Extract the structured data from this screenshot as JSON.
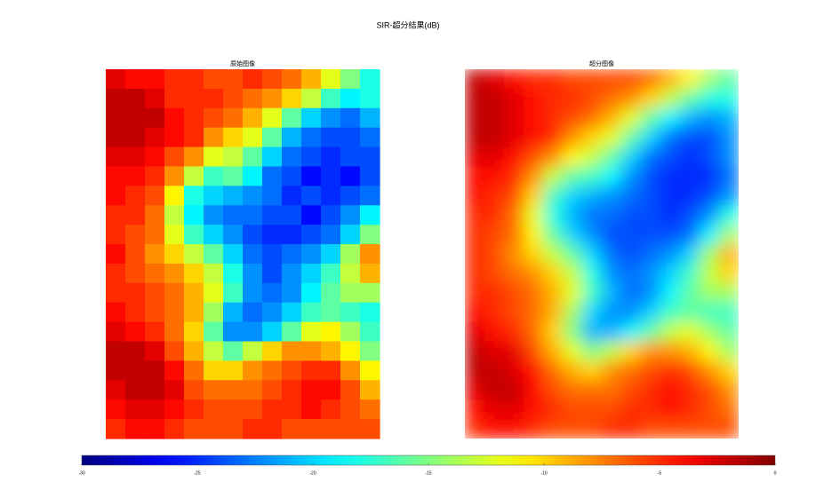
{
  "chart_data": {
    "type": "heatmap",
    "title": "SIR-超分结果(dB)",
    "colormap": "jet",
    "clim": [
      -30,
      0
    ],
    "colorbar_ticks": [
      -30,
      -25,
      -20,
      -15,
      -10,
      -5,
      0
    ],
    "panels": [
      {
        "title": "原始图像",
        "smooth": false,
        "values": [
          [
            -3,
            -4,
            -4,
            -5,
            -5,
            -6,
            -6,
            -5,
            -6,
            -7,
            -9,
            -12,
            -15,
            -18
          ],
          [
            -2,
            -2,
            -3,
            -5,
            -5,
            -5,
            -6,
            -7,
            -8,
            -10,
            -13,
            -17,
            -19,
            -18
          ],
          [
            -2,
            -2,
            -2,
            -4,
            -5,
            -6,
            -7,
            -9,
            -12,
            -16,
            -20,
            -22,
            -23,
            -21
          ],
          [
            -2,
            -2,
            -3,
            -4,
            -5,
            -8,
            -10,
            -12,
            -16,
            -21,
            -23,
            -24,
            -24,
            -23
          ],
          [
            -3,
            -3,
            -4,
            -6,
            -8,
            -12,
            -13,
            -16,
            -20,
            -23,
            -24,
            -25,
            -24,
            -24
          ],
          [
            -4,
            -4,
            -5,
            -8,
            -13,
            -17,
            -16,
            -19,
            -23,
            -24,
            -26,
            -25,
            -26,
            -24
          ],
          [
            -4,
            -5,
            -6,
            -11,
            -18,
            -20,
            -21,
            -22,
            -23,
            -25,
            -24,
            -25,
            -24,
            -23
          ],
          [
            -5,
            -5,
            -7,
            -13,
            -19,
            -22,
            -23,
            -23,
            -24,
            -24,
            -26,
            -24,
            -22,
            -19
          ],
          [
            -5,
            -6,
            -7,
            -12,
            -17,
            -20,
            -22,
            -24,
            -25,
            -25,
            -24,
            -23,
            -20,
            -15
          ],
          [
            -4,
            -6,
            -8,
            -10,
            -13,
            -16,
            -20,
            -23,
            -24,
            -23,
            -22,
            -20,
            -14,
            -8
          ],
          [
            -5,
            -6,
            -7,
            -8,
            -10,
            -13,
            -18,
            -22,
            -24,
            -22,
            -20,
            -17,
            -13,
            -9
          ],
          [
            -5,
            -5,
            -6,
            -7,
            -9,
            -12,
            -17,
            -22,
            -23,
            -22,
            -19,
            -16,
            -14,
            -14
          ],
          [
            -4,
            -5,
            -6,
            -7,
            -9,
            -14,
            -21,
            -23,
            -22,
            -20,
            -17,
            -16,
            -17,
            -18
          ],
          [
            -3,
            -4,
            -5,
            -7,
            -10,
            -16,
            -22,
            -22,
            -20,
            -16,
            -12,
            -11,
            -14,
            -17
          ],
          [
            -2,
            -2,
            -3,
            -6,
            -9,
            -13,
            -16,
            -13,
            -10,
            -8,
            -8,
            -9,
            -11,
            -15
          ],
          [
            -2,
            -2,
            -2,
            -4,
            -7,
            -10,
            -10,
            -8,
            -7,
            -6,
            -5,
            -5,
            -8,
            -11
          ],
          [
            -3,
            -2,
            -2,
            -3,
            -6,
            -7,
            -7,
            -7,
            -6,
            -5,
            -4,
            -4,
            -6,
            -9
          ],
          [
            -4,
            -3,
            -3,
            -4,
            -5,
            -6,
            -6,
            -6,
            -5,
            -5,
            -4,
            -5,
            -6,
            -7
          ],
          [
            -5,
            -4,
            -4,
            -5,
            -6,
            -6,
            -6,
            -5,
            -5,
            -6,
            -6,
            -6,
            -6,
            -6
          ]
        ]
      },
      {
        "title": "超分图像",
        "smooth": true,
        "values": [
          [
            -2,
            -3,
            -4,
            -5,
            -5,
            -6,
            -6,
            -6,
            -6,
            -7,
            -9,
            -11,
            -14,
            -16
          ],
          [
            -2,
            -2,
            -3,
            -4,
            -5,
            -5,
            -6,
            -7,
            -8,
            -10,
            -13,
            -16,
            -18,
            -18
          ],
          [
            -2,
            -2,
            -3,
            -4,
            -5,
            -6,
            -7,
            -9,
            -12,
            -16,
            -19,
            -21,
            -22,
            -21
          ],
          [
            -2,
            -2,
            -3,
            -4,
            -5,
            -8,
            -10,
            -12,
            -16,
            -20,
            -23,
            -24,
            -24,
            -22
          ],
          [
            -3,
            -3,
            -4,
            -6,
            -8,
            -11,
            -13,
            -16,
            -20,
            -23,
            -24,
            -25,
            -24,
            -22
          ],
          [
            -4,
            -4,
            -5,
            -8,
            -13,
            -16,
            -17,
            -19,
            -22,
            -24,
            -25,
            -25,
            -25,
            -23
          ],
          [
            -4,
            -5,
            -6,
            -10,
            -17,
            -20,
            -21,
            -22,
            -23,
            -24,
            -25,
            -25,
            -24,
            -22
          ],
          [
            -5,
            -5,
            -7,
            -12,
            -18,
            -21,
            -23,
            -23,
            -24,
            -24,
            -25,
            -24,
            -22,
            -18
          ],
          [
            -5,
            -6,
            -7,
            -11,
            -16,
            -20,
            -22,
            -24,
            -24,
            -24,
            -24,
            -23,
            -19,
            -14
          ],
          [
            -5,
            -6,
            -8,
            -10,
            -13,
            -16,
            -20,
            -23,
            -24,
            -23,
            -22,
            -20,
            -14,
            -9
          ],
          [
            -5,
            -6,
            -7,
            -8,
            -10,
            -13,
            -18,
            -22,
            -23,
            -22,
            -20,
            -17,
            -13,
            -10
          ],
          [
            -5,
            -5,
            -6,
            -7,
            -9,
            -12,
            -17,
            -21,
            -23,
            -22,
            -19,
            -16,
            -14,
            -14
          ],
          [
            -4,
            -5,
            -6,
            -7,
            -9,
            -14,
            -20,
            -22,
            -22,
            -20,
            -17,
            -16,
            -17,
            -17
          ],
          [
            -3,
            -4,
            -5,
            -7,
            -10,
            -15,
            -21,
            -21,
            -19,
            -16,
            -13,
            -12,
            -14,
            -16
          ],
          [
            -2,
            -3,
            -3,
            -6,
            -9,
            -12,
            -15,
            -13,
            -10,
            -8,
            -8,
            -9,
            -11,
            -14
          ],
          [
            -2,
            -2,
            -3,
            -4,
            -7,
            -9,
            -10,
            -8,
            -7,
            -6,
            -5,
            -6,
            -8,
            -10
          ],
          [
            -3,
            -2,
            -2,
            -4,
            -6,
            -7,
            -7,
            -7,
            -6,
            -5,
            -4,
            -5,
            -6,
            -8
          ],
          [
            -4,
            -3,
            -3,
            -4,
            -5,
            -6,
            -6,
            -6,
            -5,
            -5,
            -4,
            -5,
            -6,
            -7
          ],
          [
            -5,
            -4,
            -4,
            -5,
            -6,
            -6,
            -6,
            -5,
            -5,
            -6,
            -6,
            -6,
            -6,
            -6
          ]
        ]
      }
    ]
  }
}
